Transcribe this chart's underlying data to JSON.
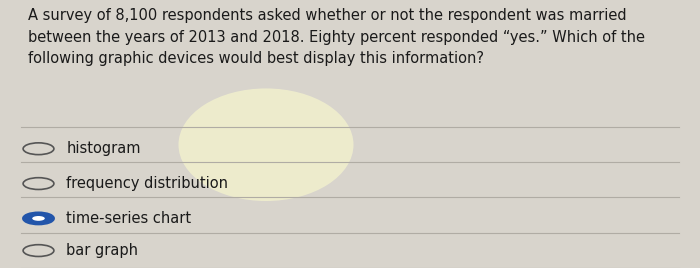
{
  "question_text": "A survey of 8,100 respondents asked whether or not the respondent was married\nbetween the years of 2013 and 2018. Eighty percent responded “yes.” Which of the\nfollowing graphic devices would best display this information?",
  "options": [
    "histogram",
    "frequency distribution",
    "time-series chart",
    "bar graph"
  ],
  "selected_index": 2,
  "background_color": "#d8d4cc",
  "text_color": "#1a1a1a",
  "question_fontsize": 10.5,
  "option_fontsize": 10.5,
  "selected_fill": "#2255aa",
  "unselected_edge": "#555555",
  "separator_color": "#b0aca4",
  "glow_color": "#ffffcc"
}
